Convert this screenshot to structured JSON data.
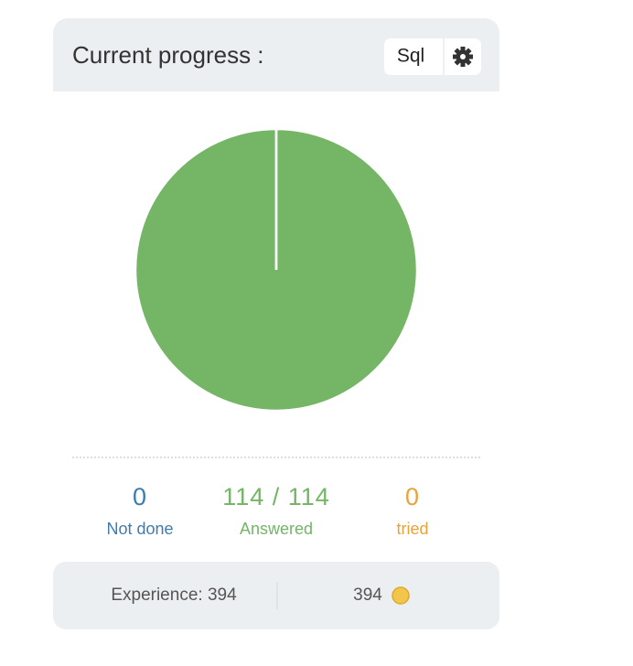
{
  "header": {
    "title": "Current progress :",
    "button": "Sql"
  },
  "chart_data": {
    "type": "pie",
    "categories": [
      "Not done",
      "Answered",
      "tried"
    ],
    "values": [
      0,
      114,
      0
    ],
    "value_labels": [
      "0",
      "114 / 114",
      "0"
    ],
    "colors": [
      "#3d7cb0",
      "#74b566",
      "#e8a33b"
    ]
  },
  "footer": {
    "experience": "Experience: 394",
    "coins": "394"
  }
}
